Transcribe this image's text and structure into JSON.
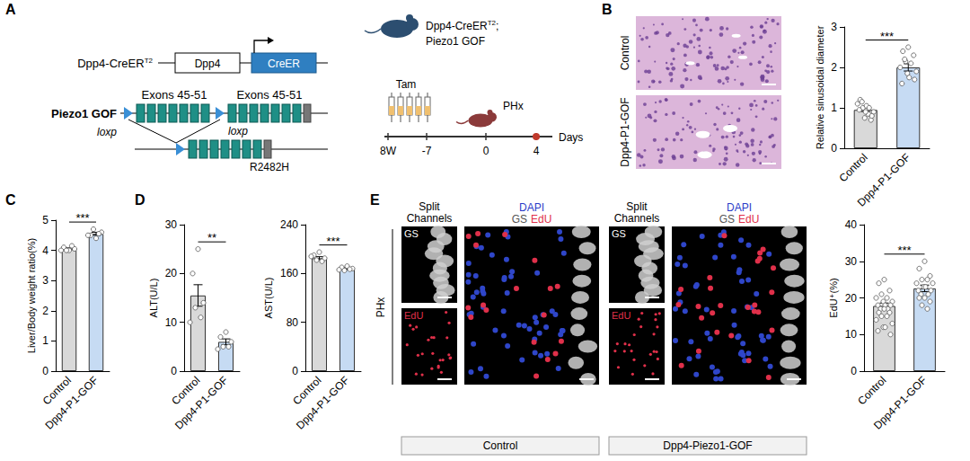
{
  "chart_data": [
    {
      "type": "bar",
      "categories": [
        "Control",
        "Dpp4-P1-GOF"
      ],
      "values": [
        0.95,
        2.0
      ],
      "errors": [
        0.04,
        0.09
      ],
      "points": [
        [
          0.95,
          1.2,
          0.7,
          1.0,
          0.85,
          1.1,
          0.9,
          0.75,
          1.05,
          0.95,
          0.8,
          1.15,
          1.0,
          0.9
        ],
        [
          2.5,
          2.4,
          2.3,
          2.15,
          2.1,
          2.0,
          1.9,
          1.85,
          1.75,
          1.6,
          1.7,
          2.2
        ]
      ],
      "colors": [
        "#d9d9d9",
        "#c6dbf3"
      ],
      "y_label": "Relative sinusoidal diameter",
      "ylim": [
        0,
        3
      ],
      "yticks": [
        0,
        1,
        2,
        3
      ],
      "significance": "***",
      "grid": false
    },
    {
      "type": "bar",
      "categories": [
        "Control",
        "Dpp4-P1-GOF"
      ],
      "values": [
        4.05,
        4.55
      ],
      "errors": [
        0.03,
        0.05
      ],
      "points": [
        [
          4.0,
          4.1,
          4.05,
          4.0,
          4.15,
          4.0
        ],
        [
          4.4,
          4.5,
          4.6,
          4.7,
          4.55,
          4.5
        ]
      ],
      "colors": [
        "#d9d9d9",
        "#c6dbf3"
      ],
      "y_label": "Liver/Body weight ratio(%)",
      "ylim": [
        0,
        5
      ],
      "yticks": [
        0,
        1,
        2,
        3,
        4,
        5
      ],
      "significance": "***",
      "grid": false
    },
    {
      "type": "bar",
      "categories": [
        "Control",
        "Dpp4-P1-GOF"
      ],
      "values": [
        15.5,
        6.0
      ],
      "errors": [
        2.2,
        0.6
      ],
      "points": [
        [
          25,
          20,
          14,
          13,
          11,
          10
        ],
        [
          8,
          7,
          6,
          5,
          5,
          4.5
        ]
      ],
      "colors": [
        "#d9d9d9",
        "#c6dbf3"
      ],
      "y_label": "ALT(U/L)",
      "ylim": [
        0,
        30
      ],
      "yticks": [
        0,
        10,
        20,
        30
      ],
      "significance": "**",
      "grid": false
    },
    {
      "type": "bar",
      "categories": [
        "Control",
        "Dpp4-P1-GOF"
      ],
      "values": [
        185,
        168
      ],
      "errors": [
        2.5,
        1.5
      ],
      "points": [
        [
          195,
          190,
          185,
          182,
          180,
          188
        ],
        [
          172,
          170,
          168,
          165,
          167,
          166
        ]
      ],
      "colors": [
        "#d9d9d9",
        "#c6dbf3"
      ],
      "y_label": "AST(U/L)",
      "ylim": [
        0,
        240
      ],
      "yticks": [
        0,
        80,
        160,
        240
      ],
      "significance": "***",
      "grid": false
    },
    {
      "type": "bar",
      "categories": [
        "Control",
        "Dpp4-P1-GOF"
      ],
      "values": [
        17.8,
        22.6
      ],
      "errors": [
        0.8,
        0.9
      ],
      "points": [
        [
          25,
          24,
          22,
          21,
          20,
          20,
          19,
          19,
          18,
          18,
          18,
          17,
          17,
          17,
          16,
          16,
          15,
          15,
          14,
          13,
          12,
          12,
          11,
          10
        ],
        [
          30,
          28,
          26,
          25,
          25,
          24,
          24,
          23,
          23,
          22,
          22,
          21,
          21,
          20,
          20,
          19,
          18,
          17
        ]
      ],
      "colors": [
        "#d9d9d9",
        "#c6dbf3"
      ],
      "y_label": "EdU⁺(%)",
      "ylim": [
        0,
        40
      ],
      "yticks": [
        0,
        10,
        20,
        30,
        40
      ],
      "significance": "***",
      "grid": false
    }
  ],
  "diagram": {
    "panel_letters": [
      "A",
      "B",
      "C",
      "D",
      "E"
    ],
    "panel_A": {
      "construct1": {
        "label": "Dpp4-CreER",
        "label_sup": "T2",
        "promoter": "Dpp4",
        "cassette": "CreER"
      },
      "construct2": {
        "label": "Piezo1 GOF",
        "exon_labels": [
          "Exons 45-51",
          "Exons 45-51"
        ],
        "loxp_labels": [
          "loxp",
          "loxp"
        ],
        "mutation": "R2482H"
      },
      "mouse": {
        "line1": "Dpp4-CreER",
        "line1_sup": "T2",
        "line1_end": ";",
        "line2": "Piezo1 GOF"
      },
      "timeline": {
        "treatment": "Tam",
        "surgery": "PHx",
        "ticks": [
          "8W",
          "-7",
          "0",
          "4"
        ],
        "unit": "Days"
      }
    },
    "panel_B_images": {
      "rows": [
        "Control",
        "Dpp4-P1-GOF"
      ]
    },
    "panel_E_images": {
      "side_label": "PHx",
      "split_title": "Split Channels",
      "channels": [
        "GS",
        "EdU"
      ],
      "merge_title": "DAPI",
      "merge_channels": [
        "GS",
        "EdU"
      ],
      "groups": [
        "Control",
        "Dpp4-Piezo1-GOF"
      ]
    }
  }
}
